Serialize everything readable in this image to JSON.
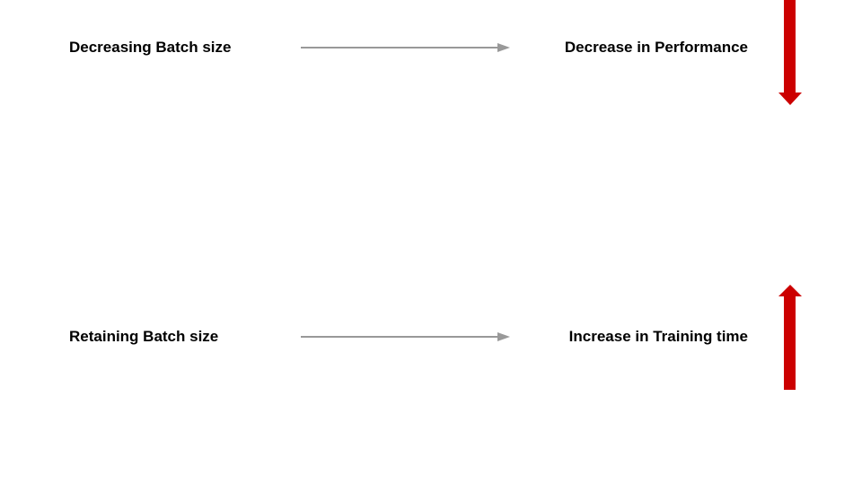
{
  "rows": [
    {
      "cause": "Decreasing Batch size",
      "effect": "Decrease in Performance",
      "indicator": "arrow-down-icon"
    },
    {
      "cause": "Retaining Batch size",
      "effect": "Increase in Training time",
      "indicator": "arrow-up-icon"
    }
  ],
  "colors": {
    "connector": "#999999",
    "indicator": "#cc0000",
    "text": "#000000",
    "background": "#ffffff"
  }
}
